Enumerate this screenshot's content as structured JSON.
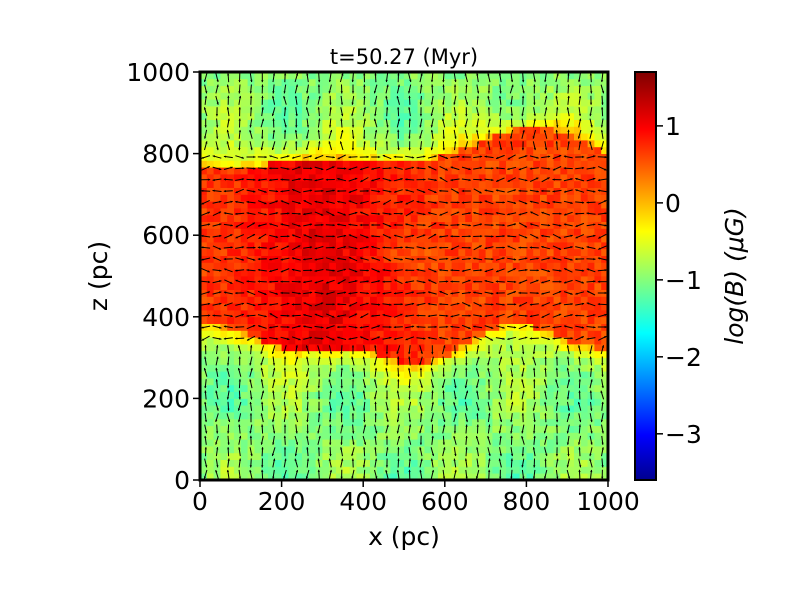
{
  "chart_data": {
    "type": "heatmap",
    "title": "t=50.27 (Myr)",
    "xlabel": "x (pc)",
    "ylabel": "z (pc)",
    "xlim": [
      0,
      1000
    ],
    "ylim": [
      0,
      1000
    ],
    "x_ticks": [
      "0",
      "200",
      "400",
      "600",
      "800",
      "1000"
    ],
    "y_ticks": [
      "0",
      "200",
      "400",
      "600",
      "800",
      "1000"
    ],
    "colorbar": {
      "label": "log(B) (μG)",
      "range": [
        -3.6,
        1.7
      ],
      "ticks": [
        "−3",
        "−2",
        "−1",
        "0",
        "1"
      ],
      "colormap": "jet"
    },
    "field_description": {
      "midplane_band_z": [
        330,
        800
      ],
      "midplane_value": 0.7,
      "halo_value": -0.9,
      "overlay": "magnetic field direction arrows"
    }
  }
}
